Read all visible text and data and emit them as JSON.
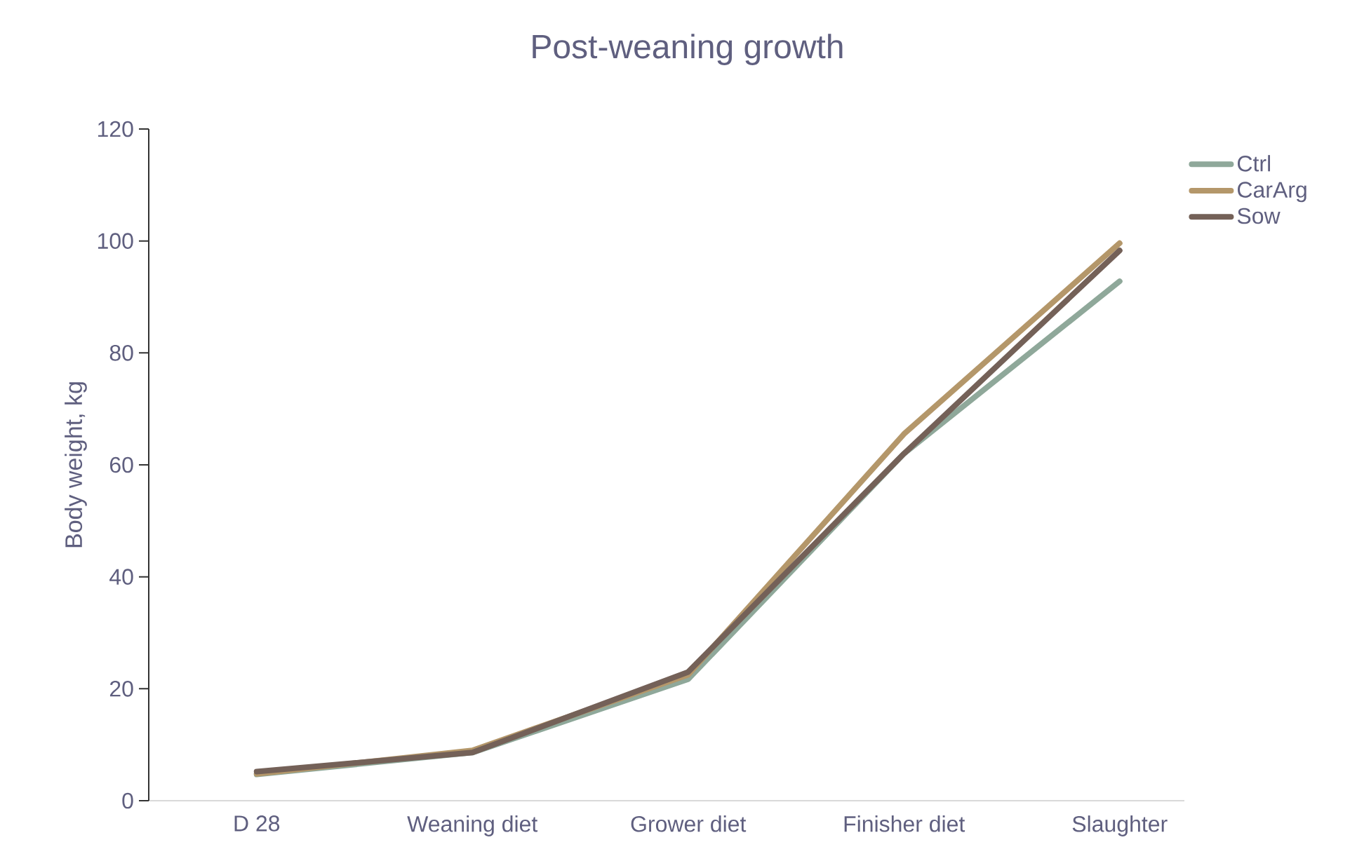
{
  "chart_data": {
    "type": "line",
    "title": "Post-weaning growth",
    "ylabel": "Body weight, kg",
    "categories": [
      "D 28",
      "Weaning diet",
      "Grower diet",
      "Finisher diet",
      "Slaughter"
    ],
    "series": [
      {
        "name": "Ctrl",
        "color": "#8fa89a",
        "values": [
          4.7,
          8.6,
          21.7,
          62.0,
          92.8
        ]
      },
      {
        "name": "CarArg",
        "color": "#b4976a",
        "values": [
          4.8,
          9.0,
          22.5,
          65.5,
          99.6
        ]
      },
      {
        "name": "Sow",
        "color": "#746158",
        "values": [
          5.2,
          8.6,
          23.0,
          62.0,
          98.3
        ]
      }
    ],
    "ylim": [
      0,
      120
    ],
    "yticks": [
      0,
      20,
      40,
      60,
      80,
      100,
      120
    ],
    "grid": false,
    "legend": "right",
    "marker": "none",
    "line_style": "solid"
  }
}
